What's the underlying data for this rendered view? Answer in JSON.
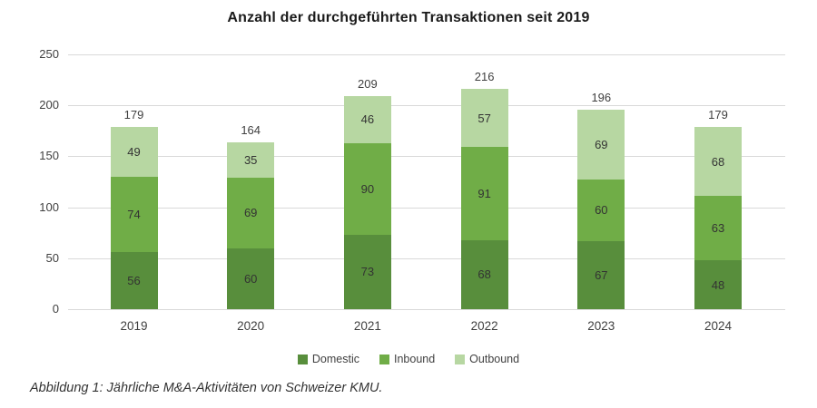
{
  "title": "Anzahl der durchgeführten Transaktionen seit 2019",
  "caption": "Abbildung 1: Jährliche M&A-Aktivitäten von Schweizer KMU.",
  "chart_data": {
    "type": "bar",
    "stacked": true,
    "title": "Anzahl der durchgeführten Transaktionen seit 2019",
    "categories": [
      "2019",
      "2020",
      "2021",
      "2022",
      "2023",
      "2024"
    ],
    "series": [
      {
        "name": "Domestic",
        "color": "#588e3c",
        "values": [
          56,
          60,
          73,
          68,
          67,
          48
        ]
      },
      {
        "name": "Inbound",
        "color": "#70ad47",
        "values": [
          74,
          69,
          90,
          91,
          60,
          63
        ]
      },
      {
        "name": "Outbound",
        "color": "#b7d7a2",
        "values": [
          49,
          35,
          46,
          57,
          69,
          68
        ]
      }
    ],
    "totals": [
      179,
      164,
      209,
      216,
      196,
      179
    ],
    "xlabel": "",
    "ylabel": "",
    "ylim": [
      0,
      250
    ],
    "yticks": [
      0,
      50,
      100,
      150,
      200,
      250
    ],
    "grid": true,
    "gridline_color": "#d9d9d9",
    "text_color": "#404040",
    "legend_position": "bottom"
  }
}
